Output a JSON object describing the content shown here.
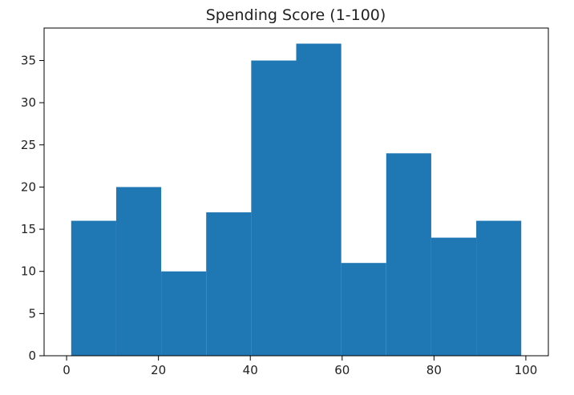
{
  "chart_data": {
    "type": "bar",
    "title": "Spending Score (1-100)",
    "xlabel": "",
    "ylabel": "",
    "xlim": [
      -4.9,
      104.9
    ],
    "ylim": [
      0,
      38.85
    ],
    "grid": false,
    "bin_edges": [
      1,
      10.8,
      20.6,
      30.4,
      40.2,
      50,
      59.8,
      69.6,
      79.4,
      89.2,
      99
    ],
    "values": [
      16,
      20,
      10,
      17,
      35,
      37,
      11,
      24,
      14,
      16
    ],
    "x_ticks": [
      0,
      20,
      40,
      60,
      80,
      100
    ],
    "y_ticks": [
      0,
      5,
      10,
      15,
      20,
      25,
      30,
      35
    ],
    "bar_color": "#1f77b4"
  }
}
